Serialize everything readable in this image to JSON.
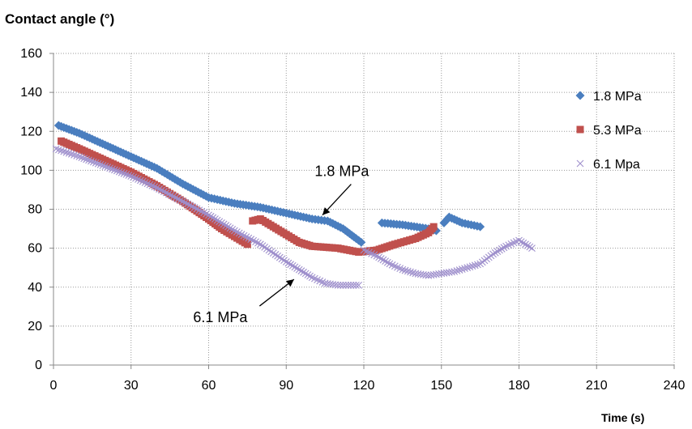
{
  "chart_data": {
    "type": "scatter",
    "ylabel": "Contact angle (°)",
    "xlabel": "Time (s)",
    "xlim": [
      0,
      240
    ],
    "ylim": [
      0,
      160
    ],
    "xticks": [
      0,
      30,
      60,
      90,
      120,
      150,
      180,
      210,
      240
    ],
    "yticks": [
      0,
      20,
      40,
      60,
      80,
      100,
      120,
      140,
      160
    ],
    "grid": true,
    "legend_position": "right",
    "series": [
      {
        "name": "1.8 MPa",
        "marker": "diamond",
        "color": "#4a7ebf",
        "segments": [
          [
            [
              2,
              123
            ],
            [
              10,
              119
            ],
            [
              20,
              113
            ],
            [
              30,
              107
            ],
            [
              40,
              101
            ],
            [
              50,
              93
            ],
            [
              60,
              86
            ],
            [
              70,
              83
            ],
            [
              80,
              81
            ],
            [
              90,
              78
            ],
            [
              100,
              75
            ],
            [
              106,
              74
            ],
            [
              112,
              70
            ],
            [
              117,
              65
            ],
            [
              119,
              63
            ]
          ],
          [
            [
              127,
              73
            ],
            [
              135,
              72
            ],
            [
              145,
              70
            ],
            [
              148,
              69
            ]
          ],
          [
            [
              151,
              73
            ],
            [
              153,
              76
            ],
            [
              158,
              73
            ],
            [
              165,
              71
            ]
          ]
        ]
      },
      {
        "name": "5.3 MPa",
        "marker": "square",
        "color": "#c0504d",
        "segments": [
          [
            [
              3,
              115
            ],
            [
              10,
              111
            ],
            [
              20,
              105
            ],
            [
              30,
              99
            ],
            [
              40,
              92
            ],
            [
              50,
              84
            ],
            [
              60,
              75
            ],
            [
              65,
              70
            ],
            [
              70,
              66
            ],
            [
              75,
              62
            ]
          ],
          [
            [
              77,
              74
            ],
            [
              80,
              75
            ],
            [
              85,
              71
            ],
            [
              90,
              67
            ],
            [
              95,
              63
            ],
            [
              100,
              61
            ],
            [
              110,
              60
            ],
            [
              118,
              58
            ],
            [
              125,
              59
            ],
            [
              132,
              62
            ],
            [
              140,
              65
            ],
            [
              145,
              68
            ],
            [
              147,
              71
            ]
          ]
        ]
      },
      {
        "name": "6.1 Mpa",
        "marker": "x",
        "color": "#9e8fcc",
        "segments": [
          [
            [
              1,
              111
            ],
            [
              10,
              107
            ],
            [
              20,
              102
            ],
            [
              30,
              97
            ],
            [
              40,
              91
            ],
            [
              50,
              84
            ],
            [
              60,
              77
            ],
            [
              70,
              69
            ],
            [
              80,
              62
            ],
            [
              90,
              53
            ],
            [
              100,
              45
            ],
            [
              105,
              42
            ],
            [
              110,
              41
            ],
            [
              118,
              41
            ]
          ],
          [
            [
              120,
              59
            ],
            [
              125,
              56
            ],
            [
              130,
              52
            ],
            [
              135,
              49
            ],
            [
              140,
              47
            ],
            [
              145,
              46
            ],
            [
              150,
              47
            ],
            [
              155,
              48
            ],
            [
              160,
              50
            ],
            [
              165,
              52
            ],
            [
              170,
              57
            ],
            [
              175,
              61
            ],
            [
              180,
              64
            ],
            [
              185,
              60
            ]
          ]
        ]
      }
    ],
    "annotations": [
      {
        "text": "1.8 MPa",
        "text_at": [
          101,
          97
        ],
        "arrow_to": [
          104,
          77
        ]
      },
      {
        "text": "6.1 MPa",
        "text_at": [
          54,
          22
        ],
        "arrow_to": [
          93,
          44
        ]
      }
    ]
  }
}
